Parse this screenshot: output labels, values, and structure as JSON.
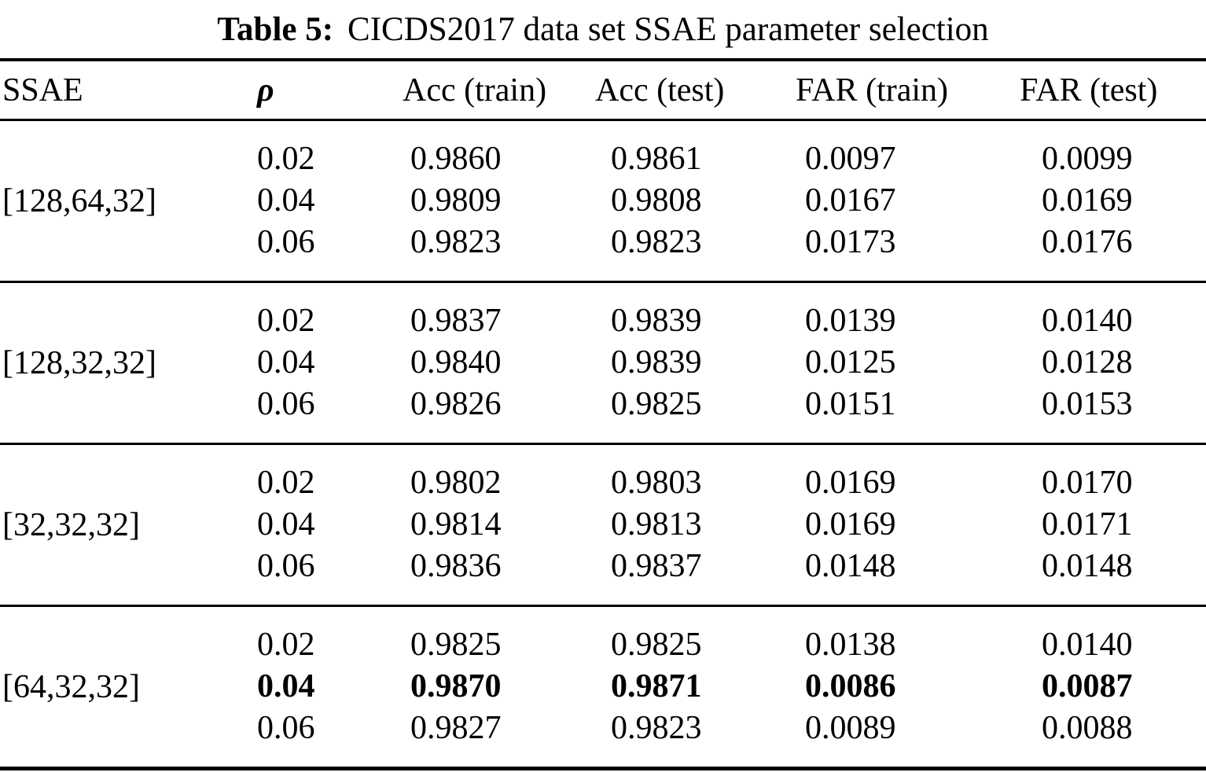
{
  "caption": {
    "label": "Table 5:",
    "text": "CICDS2017 data set SSAE parameter selection"
  },
  "colors": {
    "text": "#000000",
    "background": "#ffffff",
    "rule": "#000000"
  },
  "table": {
    "headers": {
      "ssae": "SSAE",
      "rho": "ρ",
      "acc_train": "Acc (train)",
      "acc_test": "Acc (test)",
      "far_train": "FAR (train)",
      "far_test": "FAR (test)"
    },
    "groups": [
      {
        "ssae": "[128,64,32]",
        "rows": [
          {
            "rho": "0.02",
            "acc_train": "0.9860",
            "acc_test": "0.9861",
            "far_train": "0.0097",
            "far_test": "0.0099",
            "bold": false
          },
          {
            "rho": "0.04",
            "acc_train": "0.9809",
            "acc_test": "0.9808",
            "far_train": "0.0167",
            "far_test": "0.0169",
            "bold": false
          },
          {
            "rho": "0.06",
            "acc_train": "0.9823",
            "acc_test": "0.9823",
            "far_train": "0.0173",
            "far_test": "0.0176",
            "bold": false
          }
        ]
      },
      {
        "ssae": "[128,32,32]",
        "rows": [
          {
            "rho": "0.02",
            "acc_train": "0.9837",
            "acc_test": "0.9839",
            "far_train": "0.0139",
            "far_test": "0.0140",
            "bold": false
          },
          {
            "rho": "0.04",
            "acc_train": "0.9840",
            "acc_test": "0.9839",
            "far_train": "0.0125",
            "far_test": "0.0128",
            "bold": false
          },
          {
            "rho": "0.06",
            "acc_train": "0.9826",
            "acc_test": "0.9825",
            "far_train": "0.0151",
            "far_test": "0.0153",
            "bold": false
          }
        ]
      },
      {
        "ssae": "[32,32,32]",
        "rows": [
          {
            "rho": "0.02",
            "acc_train": "0.9802",
            "acc_test": "0.9803",
            "far_train": "0.0169",
            "far_test": "0.0170",
            "bold": false
          },
          {
            "rho": "0.04",
            "acc_train": "0.9814",
            "acc_test": "0.9813",
            "far_train": "0.0169",
            "far_test": "0.0171",
            "bold": false
          },
          {
            "rho": "0.06",
            "acc_train": "0.9836",
            "acc_test": "0.9837",
            "far_train": "0.0148",
            "far_test": "0.0148",
            "bold": false
          }
        ]
      },
      {
        "ssae": "[64,32,32]",
        "rows": [
          {
            "rho": "0.02",
            "acc_train": "0.9825",
            "acc_test": "0.9825",
            "far_train": "0.0138",
            "far_test": "0.0140",
            "bold": false
          },
          {
            "rho": "0.04",
            "acc_train": "0.9870",
            "acc_test": "0.9871",
            "far_train": "0.0086",
            "far_test": "0.0087",
            "bold": true
          },
          {
            "rho": "0.06",
            "acc_train": "0.9827",
            "acc_test": "0.9823",
            "far_train": "0.0089",
            "far_test": "0.0088",
            "bold": false
          }
        ]
      }
    ]
  }
}
